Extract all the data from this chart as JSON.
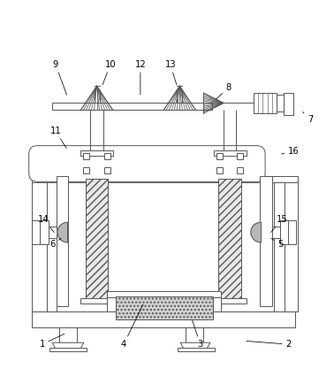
{
  "background_color": "#ffffff",
  "line_color": "#555555",
  "label_color": "#000000",
  "fig_width": 3.78,
  "fig_height": 4.43,
  "dpi": 100,
  "annotations": {
    "1": [
      0.125,
      0.055,
      0.195,
      0.088
    ],
    "2": [
      0.865,
      0.055,
      0.735,
      0.065
    ],
    "3": [
      0.6,
      0.055,
      0.575,
      0.13
    ],
    "4": [
      0.37,
      0.055,
      0.43,
      0.178
    ],
    "5": [
      0.84,
      0.355,
      0.81,
      0.375
    ],
    "6": [
      0.155,
      0.355,
      0.185,
      0.375
    ],
    "7": [
      0.93,
      0.73,
      0.905,
      0.755
    ],
    "8": [
      0.685,
      0.825,
      0.645,
      0.788
    ],
    "9": [
      0.165,
      0.895,
      0.2,
      0.8
    ],
    "10": [
      0.33,
      0.895,
      0.305,
      0.83
    ],
    "11": [
      0.165,
      0.695,
      0.2,
      0.64
    ],
    "12": [
      0.42,
      0.895,
      0.42,
      0.8
    ],
    "13": [
      0.51,
      0.895,
      0.53,
      0.83
    ],
    "14": [
      0.13,
      0.43,
      0.163,
      0.388
    ],
    "15": [
      0.845,
      0.43,
      0.81,
      0.388
    ],
    "16": [
      0.88,
      0.635,
      0.84,
      0.625
    ]
  }
}
